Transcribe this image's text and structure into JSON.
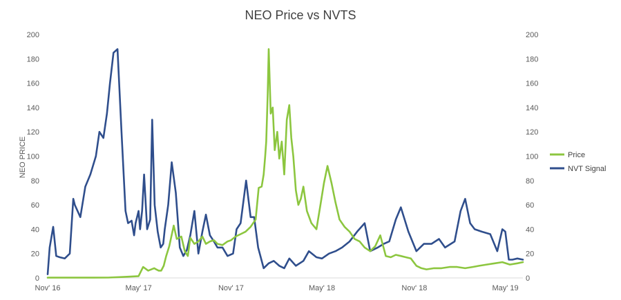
{
  "chart_data": {
    "type": "line",
    "title": "NEO Price vs NVTS",
    "ylabel": "NEO PRICE",
    "ylabel_right": "",
    "xlabel": "",
    "ylim": [
      0,
      200
    ],
    "y_right_lim": [
      0,
      200
    ],
    "y_ticks": [
      "0",
      "20",
      "40",
      "60",
      "80",
      "100",
      "120",
      "140",
      "160",
      "180",
      "200"
    ],
    "x_tick_labels": [
      "Nov' 16",
      "May' 17",
      "Nov' 17",
      "May' 18",
      "Nov' 18",
      "May' 19"
    ],
    "x_tick_dates": [
      "2016-11-01",
      "2017-05-01",
      "2017-11-01",
      "2018-05-01",
      "2018-11-01",
      "2019-05-01"
    ],
    "x_range": [
      "2016-11-01",
      "2019-06-05"
    ],
    "grid": false,
    "legend_position": "right",
    "colors": {
      "price": "#8CC63F",
      "nvt": "#2F4E8C",
      "axis": "#D9D9D9",
      "text": "#595959"
    },
    "series": [
      {
        "name": "Price",
        "color": "#8CC63F",
        "axis": "left",
        "x": [
          "2016-11-01",
          "2016-12-01",
          "2017-01-01",
          "2017-02-01",
          "2017-03-01",
          "2017-04-01",
          "2017-05-01",
          "2017-05-10",
          "2017-05-20",
          "2017-06-01",
          "2017-06-05",
          "2017-06-10",
          "2017-06-15",
          "2017-06-20",
          "2017-06-25",
          "2017-07-01",
          "2017-07-10",
          "2017-07-16",
          "2017-07-25",
          "2017-08-01",
          "2017-08-07",
          "2017-08-12",
          "2017-08-20",
          "2017-08-28",
          "2017-09-05",
          "2017-09-12",
          "2017-09-20",
          "2017-09-28",
          "2017-10-05",
          "2017-10-15",
          "2017-10-25",
          "2017-11-01",
          "2017-11-10",
          "2017-11-20",
          "2017-11-30",
          "2017-12-10",
          "2017-12-20",
          "2017-12-26",
          "2018-01-01",
          "2018-01-05",
          "2018-01-08",
          "2018-01-10",
          "2018-01-13",
          "2018-01-15",
          "2018-01-19",
          "2018-01-23",
          "2018-01-27",
          "2018-02-01",
          "2018-02-05",
          "2018-02-10",
          "2018-02-15",
          "2018-02-20",
          "2018-02-25",
          "2018-03-01",
          "2018-03-05",
          "2018-03-10",
          "2018-03-15",
          "2018-03-20",
          "2018-03-25",
          "2018-04-01",
          "2018-04-10",
          "2018-04-20",
          "2018-04-28",
          "2018-05-05",
          "2018-05-12",
          "2018-05-20",
          "2018-05-28",
          "2018-06-05",
          "2018-06-15",
          "2018-06-25",
          "2018-07-05",
          "2018-07-15",
          "2018-07-25",
          "2018-08-05",
          "2018-08-15",
          "2018-08-25",
          "2018-09-05",
          "2018-09-15",
          "2018-09-25",
          "2018-10-05",
          "2018-10-15",
          "2018-10-25",
          "2018-11-05",
          "2018-11-15",
          "2018-11-25",
          "2018-12-10",
          "2018-12-25",
          "2019-01-10",
          "2019-01-25",
          "2019-02-10",
          "2019-02-25",
          "2019-03-10",
          "2019-03-25",
          "2019-04-10",
          "2019-04-25",
          "2019-05-10",
          "2019-05-25",
          "2019-06-05"
        ],
        "values": [
          0.2,
          0.2,
          0.2,
          0.2,
          0.3,
          0.8,
          1.5,
          9,
          6,
          8,
          7,
          6,
          6,
          10,
          18,
          26,
          43,
          32,
          34,
          22,
          18,
          33,
          28,
          30,
          34,
          28,
          30,
          31,
          28,
          27,
          30,
          31,
          34,
          36,
          38,
          42,
          48,
          74,
          75,
          85,
          100,
          112,
          150,
          188,
          135,
          140,
          105,
          120,
          98,
          112,
          85,
          130,
          142,
          115,
          100,
          72,
          60,
          65,
          75,
          55,
          45,
          40,
          60,
          78,
          92,
          78,
          62,
          48,
          42,
          38,
          32,
          30,
          25,
          22,
          26,
          35,
          18,
          17,
          19,
          18,
          17,
          16,
          10,
          8,
          7,
          8,
          8,
          9,
          9,
          8,
          9,
          10,
          11,
          12,
          13,
          11,
          12,
          13
        ]
      },
      {
        "name": "NVT Signal",
        "color": "#2F4E8C",
        "axis": "right",
        "x": [
          "2016-11-01",
          "2016-11-05",
          "2016-11-12",
          "2016-11-18",
          "2016-11-25",
          "2016-12-05",
          "2016-12-15",
          "2016-12-22",
          "2016-12-25",
          "2017-01-05",
          "2017-01-15",
          "2017-01-25",
          "2017-02-05",
          "2017-02-12",
          "2017-02-20",
          "2017-02-27",
          "2017-03-05",
          "2017-03-12",
          "2017-03-20",
          "2017-03-28",
          "2017-04-05",
          "2017-04-10",
          "2017-04-17",
          "2017-04-22",
          "2017-04-25",
          "2017-05-01",
          "2017-05-04",
          "2017-05-08",
          "2017-05-12",
          "2017-05-18",
          "2017-05-24",
          "2017-05-28",
          "2017-06-02",
          "2017-06-08",
          "2017-06-14",
          "2017-06-19",
          "2017-06-22",
          "2017-06-29",
          "2017-07-06",
          "2017-07-14",
          "2017-07-22",
          "2017-07-29",
          "2017-08-05",
          "2017-08-12",
          "2017-08-20",
          "2017-08-28",
          "2017-09-05",
          "2017-09-12",
          "2017-09-20",
          "2017-09-28",
          "2017-10-05",
          "2017-10-15",
          "2017-10-25",
          "2017-11-05",
          "2017-11-12",
          "2017-11-20",
          "2017-12-01",
          "2017-12-10",
          "2017-12-17",
          "2017-12-25",
          "2018-01-05",
          "2018-01-15",
          "2018-01-25",
          "2018-02-05",
          "2018-02-15",
          "2018-02-25",
          "2018-03-10",
          "2018-03-25",
          "2018-04-05",
          "2018-04-20",
          "2018-05-01",
          "2018-05-15",
          "2018-05-28",
          "2018-06-10",
          "2018-06-25",
          "2018-07-10",
          "2018-07-25",
          "2018-08-05",
          "2018-08-20",
          "2018-09-01",
          "2018-09-12",
          "2018-09-25",
          "2018-10-05",
          "2018-10-20",
          "2018-11-05",
          "2018-11-20",
          "2018-12-05",
          "2018-12-20",
          "2019-01-01",
          "2019-01-20",
          "2019-02-01",
          "2019-02-10",
          "2019-02-20",
          "2019-03-01",
          "2019-03-15",
          "2019-04-01",
          "2019-04-15",
          "2019-04-25",
          "2019-05-01",
          "2019-05-08",
          "2019-05-15",
          "2019-05-25",
          "2019-06-05"
        ],
        "values": [
          3,
          25,
          42,
          18,
          17,
          16,
          20,
          65,
          60,
          50,
          75,
          85,
          100,
          120,
          115,
          135,
          160,
          185,
          188,
          120,
          55,
          45,
          47,
          35,
          45,
          55,
          40,
          55,
          85,
          40,
          48,
          130,
          60,
          38,
          25,
          28,
          40,
          60,
          95,
          70,
          25,
          18,
          23,
          35,
          55,
          20,
          38,
          52,
          35,
          30,
          25,
          25,
          18,
          20,
          40,
          45,
          80,
          50,
          50,
          25,
          8,
          12,
          14,
          10,
          8,
          16,
          10,
          14,
          22,
          17,
          16,
          20,
          22,
          25,
          30,
          38,
          45,
          22,
          25,
          28,
          30,
          48,
          58,
          38,
          22,
          28,
          28,
          32,
          25,
          30,
          55,
          65,
          45,
          40,
          38,
          36,
          22,
          40,
          38,
          15,
          15,
          16,
          15
        ]
      }
    ]
  }
}
